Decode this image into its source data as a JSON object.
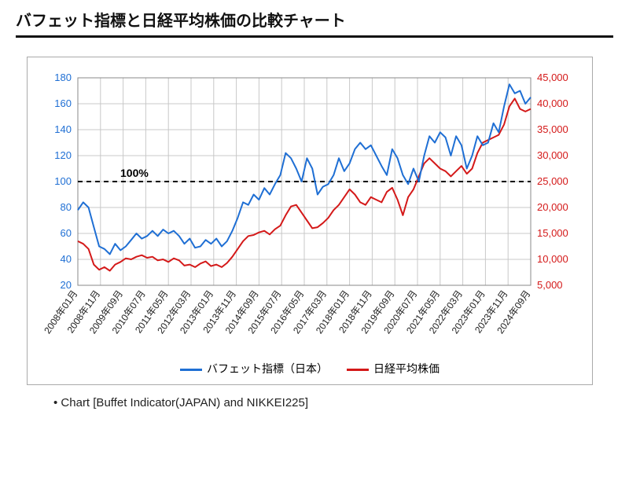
{
  "title": "バフェット指標と日経平均株価の比較チャート",
  "caption": "Chart [Buffet Indicator(JAPAN) and NIKKEI225]",
  "chart": {
    "type": "line-dual-axis",
    "background_color": "#ffffff",
    "border_color": "#888888",
    "grid_color": "#c8c8c8",
    "font_family": "Meiryo",
    "tick_fontsize": 13,
    "left_axis": {
      "color": "#1f6fd4",
      "min": 20,
      "max": 180,
      "step": 20,
      "ticks": [
        20,
        40,
        60,
        80,
        100,
        120,
        140,
        160,
        180
      ]
    },
    "right_axis": {
      "color": "#d41919",
      "min": 5000,
      "max": 45000,
      "step": 5000,
      "ticks": [
        5000,
        10000,
        15000,
        20000,
        25000,
        30000,
        35000,
        40000,
        45000
      ]
    },
    "x_labels": [
      "2008年01月",
      "2008年11月",
      "2009年09月",
      "2010年07月",
      "2011年05月",
      "2012年03月",
      "2013年01月",
      "2013年11月",
      "2014年09月",
      "2015年07月",
      "2016年05月",
      "2017年03月",
      "2018年01月",
      "2018年11月",
      "2019年09月",
      "2020年07月",
      "2021年05月",
      "2022年03月",
      "2023年01月",
      "2023年11月",
      "2024年09月"
    ],
    "reference_line": {
      "label": "100%",
      "left_value": 100,
      "color": "#000000",
      "dash": "6,5",
      "width": 2,
      "label_fontsize": 14,
      "label_weight": "bold"
    },
    "legend": {
      "items": [
        {
          "label": "バフェット指標（日本）",
          "color": "#1f6fd4"
        },
        {
          "label": "日経平均株価",
          "color": "#d41919"
        }
      ]
    },
    "line_width": 2,
    "series_buffett": {
      "color": "#1f6fd4",
      "axis": "left",
      "values": [
        78,
        84,
        80,
        65,
        50,
        48,
        44,
        52,
        47,
        50,
        55,
        60,
        56,
        58,
        62,
        58,
        63,
        60,
        62,
        58,
        52,
        56,
        49,
        50,
        55,
        52,
        56,
        50,
        54,
        62,
        72,
        84,
        82,
        90,
        86,
        95,
        90,
        98,
        105,
        122,
        118,
        110,
        100,
        118,
        110,
        90,
        96,
        98,
        105,
        118,
        108,
        114,
        125,
        130,
        125,
        128,
        120,
        112,
        105,
        125,
        118,
        105,
        98,
        110,
        100,
        120,
        135,
        130,
        138,
        134,
        120,
        135,
        128,
        110,
        120,
        135,
        128,
        130,
        145,
        138,
        158,
        175,
        168,
        170,
        160,
        165
      ]
    },
    "series_nikkei": {
      "color": "#d41919",
      "axis": "right",
      "values": [
        13500,
        13000,
        12000,
        9000,
        8000,
        8500,
        7800,
        9000,
        9500,
        10200,
        10000,
        10500,
        10800,
        10300,
        10500,
        9800,
        10000,
        9500,
        10200,
        9800,
        8800,
        9000,
        8500,
        9200,
        9600,
        8700,
        9000,
        8500,
        9300,
        10500,
        12000,
        13500,
        14500,
        14700,
        15200,
        15500,
        14800,
        15800,
        16500,
        18500,
        20200,
        20500,
        19000,
        17500,
        16000,
        16200,
        17000,
        18000,
        19500,
        20500,
        22000,
        23500,
        22500,
        21000,
        20500,
        22000,
        21500,
        21000,
        23000,
        23800,
        21500,
        18500,
        22000,
        23500,
        26000,
        28500,
        29500,
        28500,
        27500,
        27000,
        26000,
        27000,
        28000,
        26500,
        27500,
        30500,
        32500,
        33000,
        33500,
        34000,
        36000,
        39500,
        41000,
        39000,
        38500,
        39000
      ]
    }
  }
}
